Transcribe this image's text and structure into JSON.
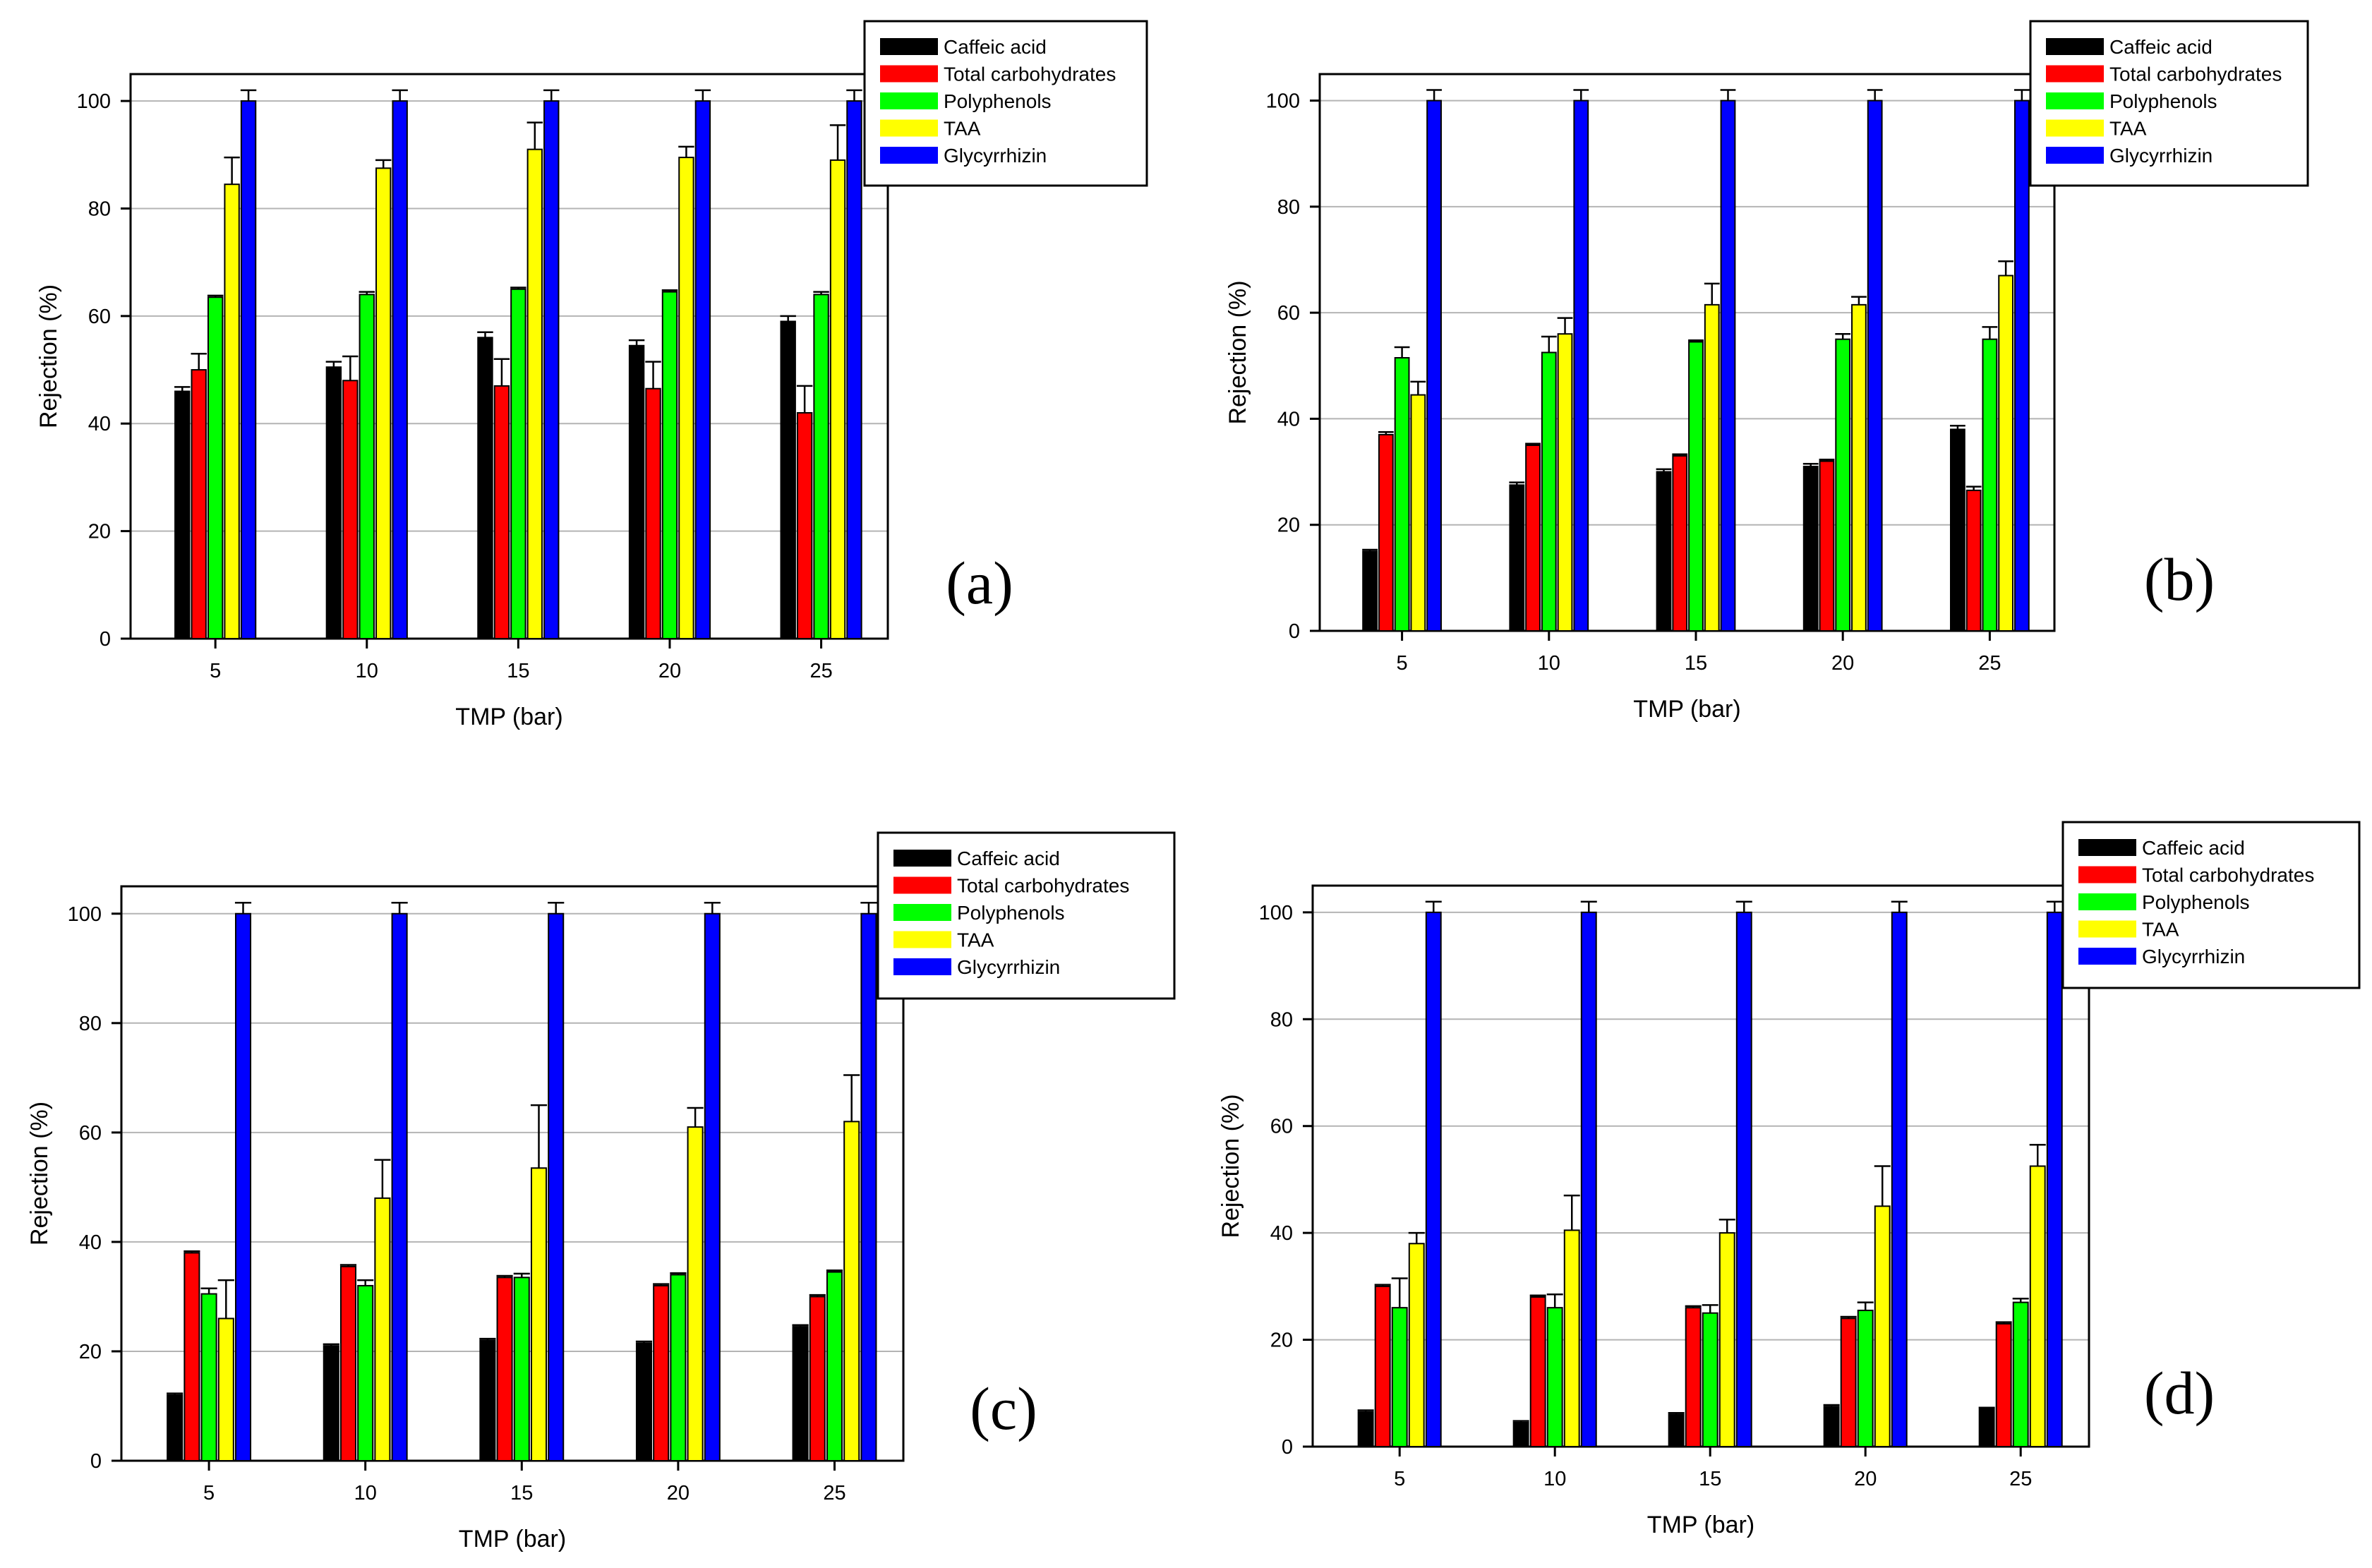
{
  "series_colors": {
    "Caffeic acid": "#000000",
    "Total carbohydrates": "#ff0000",
    "Polyphenols": "#00ff00",
    "TAA": "#ffff00",
    "Glycyrrhizin": "#0000ff"
  },
  "chart_data": [
    {
      "type": "bar",
      "panel_label": "(a)",
      "xlabel": "TMP (bar)",
      "ylabel": "Rejection (%)",
      "categories": [
        "5",
        "10",
        "15",
        "20",
        "25"
      ],
      "ylim": [
        0,
        105
      ],
      "yticks": [
        "0",
        "20",
        "40",
        "60",
        "80",
        "100"
      ],
      "grid": true,
      "legend_position": "top-right",
      "series": [
        {
          "name": "Caffeic acid",
          "values": [
            46,
            50.5,
            56,
            54.5,
            59
          ],
          "errors": [
            0.8,
            1,
            1,
            1,
            1
          ]
        },
        {
          "name": "Total carbohydrates",
          "values": [
            50,
            48,
            47,
            46.5,
            42
          ],
          "errors": [
            3,
            4.5,
            5,
            5,
            5
          ]
        },
        {
          "name": "Polyphenols",
          "values": [
            63.5,
            64,
            65,
            64.5,
            64
          ],
          "errors": [
            0.3,
            0.5,
            0.3,
            0.3,
            0.5
          ]
        },
        {
          "name": "TAA",
          "values": [
            84.5,
            87.5,
            91,
            89.5,
            89
          ],
          "errors": [
            5,
            1.5,
            5,
            2,
            6.5
          ]
        },
        {
          "name": "Glycyrrhizin",
          "values": [
            100,
            100,
            100,
            100,
            100
          ],
          "errors": [
            2,
            2,
            2,
            2,
            2
          ]
        }
      ]
    },
    {
      "type": "bar",
      "panel_label": "(b)",
      "xlabel": "TMP (bar)",
      "ylabel": "Rejection (%)",
      "categories": [
        "5",
        "10",
        "15",
        "20",
        "25"
      ],
      "ylim": [
        0,
        105
      ],
      "yticks": [
        "0",
        "20",
        "40",
        "60",
        "80",
        "100"
      ],
      "grid": true,
      "legend_position": "top-right",
      "series": [
        {
          "name": "Caffeic acid",
          "values": [
            15,
            27.5,
            30,
            31,
            38
          ],
          "errors": [
            0.3,
            0.5,
            0.5,
            0.5,
            0.7
          ]
        },
        {
          "name": "Total carbohydrates",
          "values": [
            37,
            35,
            33,
            32,
            26.5
          ],
          "errors": [
            0.5,
            0.3,
            0.3,
            0.3,
            0.7
          ]
        },
        {
          "name": "Polyphenols",
          "values": [
            51.5,
            52.5,
            54.5,
            55,
            55
          ],
          "errors": [
            2,
            3,
            0.3,
            1,
            2.3
          ]
        },
        {
          "name": "TAA",
          "values": [
            44.5,
            56,
            61.5,
            61.5,
            67
          ],
          "errors": [
            2.5,
            3,
            4,
            1.5,
            2.7
          ]
        },
        {
          "name": "Glycyrrhizin",
          "values": [
            100,
            100,
            100,
            100,
            100
          ],
          "errors": [
            2,
            2,
            2,
            2,
            2
          ]
        }
      ]
    },
    {
      "type": "bar",
      "panel_label": "(c)",
      "xlabel": "TMP (bar)",
      "ylabel": "Rejection (%)",
      "categories": [
        "5",
        "10",
        "15",
        "20",
        "25"
      ],
      "ylim": [
        0,
        105
      ],
      "yticks": [
        "0",
        "20",
        "40",
        "60",
        "80",
        "100"
      ],
      "grid": true,
      "legend_position": "top-right",
      "series": [
        {
          "name": "Caffeic acid",
          "values": [
            12,
            21,
            22,
            21.5,
            24.5
          ],
          "errors": [
            0.3,
            0.3,
            0.3,
            0.3,
            0.3
          ]
        },
        {
          "name": "Total carbohydrates",
          "values": [
            38,
            35.5,
            33.5,
            32,
            30
          ],
          "errors": [
            0.3,
            0.3,
            0.3,
            0.3,
            0.3
          ]
        },
        {
          "name": "Polyphenols",
          "values": [
            30.5,
            32,
            33.5,
            34,
            34.5
          ],
          "errors": [
            1,
            1,
            0.7,
            0.3,
            0.3
          ]
        },
        {
          "name": "TAA",
          "values": [
            26,
            48,
            53.5,
            61,
            62
          ],
          "errors": [
            7,
            7,
            11.5,
            3.5,
            8.5
          ]
        },
        {
          "name": "Glycyrrhizin",
          "values": [
            100,
            100,
            100,
            100,
            100
          ],
          "errors": [
            2,
            2,
            2,
            2,
            2
          ]
        }
      ]
    },
    {
      "type": "bar",
      "panel_label": "(d)",
      "xlabel": "TMP (bar)",
      "ylabel": "Rejection (%)",
      "categories": [
        "5",
        "10",
        "15",
        "20",
        "25"
      ],
      "ylim": [
        0,
        105
      ],
      "yticks": [
        "0",
        "20",
        "40",
        "60",
        "80",
        "100"
      ],
      "grid": true,
      "legend_position": "top-right",
      "series": [
        {
          "name": "Caffeic acid",
          "values": [
            6.5,
            4.5,
            6,
            7.5,
            7
          ],
          "errors": [
            0.3,
            0.3,
            0.3,
            0.3,
            0.3
          ]
        },
        {
          "name": "Total carbohydrates",
          "values": [
            30,
            28,
            26,
            24,
            23
          ],
          "errors": [
            0.3,
            0.3,
            0.3,
            0.3,
            0.3
          ]
        },
        {
          "name": "Polyphenols",
          "values": [
            26,
            26,
            25,
            25.5,
            27
          ],
          "errors": [
            5.5,
            2.5,
            1.5,
            1.5,
            0.7
          ]
        },
        {
          "name": "TAA",
          "values": [
            38,
            40.5,
            40,
            45,
            52.5
          ],
          "errors": [
            2,
            6.5,
            2.5,
            7.5,
            4
          ]
        },
        {
          "name": "Glycyrrhizin",
          "values": [
            100,
            100,
            100,
            100,
            100
          ],
          "errors": [
            2,
            2,
            2,
            2,
            2
          ]
        }
      ]
    }
  ]
}
